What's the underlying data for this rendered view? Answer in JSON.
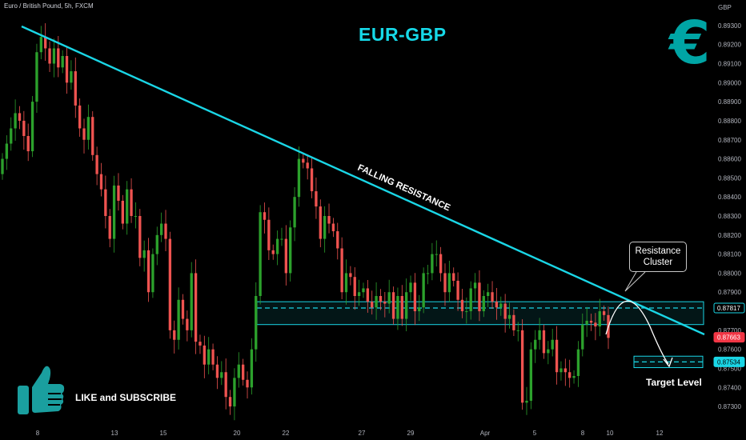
{
  "header": {
    "instrument": "Euro / British Pound, 5h, FXCM"
  },
  "annotations": {
    "title": "EUR-GBP",
    "falling_resistance": "FALLING RESISTANCE",
    "callout_line1": "Resistance",
    "callout_line2": "Cluster",
    "target_level": "Target Level",
    "like_subscribe": "LIKE and SUBSCRIBE"
  },
  "icons": {
    "brand_icon": "euro-icon",
    "like_icon": "thumbs-up-icon"
  },
  "colors": {
    "up": "#26a69a",
    "up_bright": "#2ca12c",
    "down": "#ef5350",
    "trendline": "#1ad6e6",
    "zone": "#1ad6e6",
    "background": "#000000",
    "current_price_bg": "#f23645",
    "euro_icon": "#00a5a5",
    "thumb_icon": "#1a9f9f"
  },
  "chart_data": {
    "type": "candlestick",
    "currency_label": "GBP",
    "ylim": [
      0.8725,
      0.8935
    ],
    "yticks": [
      "0.89300",
      "0.89200",
      "0.89100",
      "0.89000",
      "0.88900",
      "0.88800",
      "0.88700",
      "0.88600",
      "0.88500",
      "0.88400",
      "0.88300",
      "0.88200",
      "0.88100",
      "0.88000",
      "0.87900",
      "0.87700",
      "0.87600",
      "0.87500",
      "0.87400",
      "0.87300"
    ],
    "xticks": [
      "8",
      "13",
      "15",
      "20",
      "22",
      "27",
      "29",
      "Apr",
      "5",
      "8",
      "10",
      "12"
    ],
    "price_badges": [
      {
        "label": "0.87817",
        "style": "outline"
      },
      {
        "label": "0.87663",
        "style": "current"
      },
      {
        "label": "0.87534",
        "style": "target"
      }
    ],
    "resistance_zone": [
      0.8773,
      0.8785
    ],
    "resistance_level": 0.87817,
    "target_level": 0.87534,
    "closes": [
      0.886,
      0.8868,
      0.8876,
      0.8884,
      0.888,
      0.8872,
      0.8864,
      0.889,
      0.8916,
      0.8924,
      0.8918,
      0.891,
      0.8918,
      0.8908,
      0.8914,
      0.89,
      0.8906,
      0.8888,
      0.8876,
      0.887,
      0.8882,
      0.8862,
      0.8852,
      0.8844,
      0.883,
      0.8818,
      0.8846,
      0.8838,
      0.8826,
      0.8844,
      0.883,
      0.883,
      0.8808,
      0.8812,
      0.879,
      0.881,
      0.882,
      0.8826,
      0.8818,
      0.877,
      0.8765,
      0.8786,
      0.8776,
      0.877,
      0.88,
      0.8764,
      0.8762,
      0.8752,
      0.876,
      0.8752,
      0.8745,
      0.8748,
      0.8735,
      0.873,
      0.8745,
      0.8752,
      0.8744,
      0.874,
      0.876,
      0.8788,
      0.8832,
      0.8828,
      0.8812,
      0.881,
      0.8818,
      0.8818,
      0.88,
      0.8824,
      0.884,
      0.886,
      0.8858,
      0.8855,
      0.8843,
      0.8835,
      0.8818,
      0.883,
      0.8826,
      0.8822,
      0.8813,
      0.879,
      0.88,
      0.8798,
      0.8788,
      0.879,
      0.8792,
      0.8785,
      0.8782,
      0.8788,
      0.8785,
      0.8784,
      0.879,
      0.8776,
      0.8788,
      0.8776,
      0.879,
      0.8795,
      0.878,
      0.8782,
      0.88,
      0.88,
      0.881,
      0.881,
      0.88,
      0.879,
      0.88,
      0.8796,
      0.8786,
      0.878,
      0.878,
      0.8792,
      0.8795,
      0.878,
      0.8788,
      0.879,
      0.8785,
      0.8782,
      0.8784,
      0.8776,
      0.8778,
      0.877,
      0.877,
      0.8732,
      0.8733,
      0.876,
      0.8765,
      0.877,
      0.8758,
      0.876,
      0.8765,
      0.8748,
      0.875,
      0.8748,
      0.8745,
      0.8746,
      0.876,
      0.8773,
      0.8775,
      0.8774,
      0.8772,
      0.878,
      0.8778,
      0.8766
    ]
  }
}
